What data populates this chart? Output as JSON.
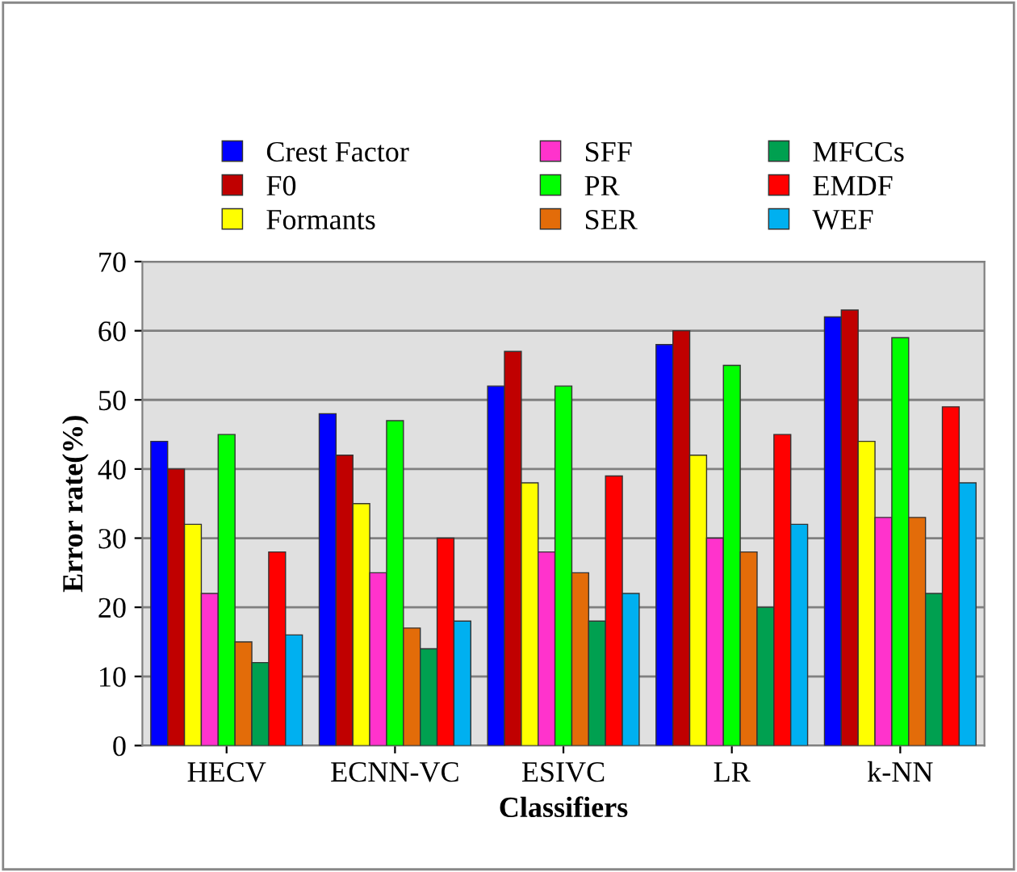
{
  "chart_data": {
    "type": "bar",
    "xlabel": "Classifiers",
    "ylabel": "Error rate(%)",
    "categories": [
      "HECV",
      "ECNN-VC",
      "ESIVC",
      "LR",
      "k-NN"
    ],
    "series": [
      {
        "name": "Crest Factor",
        "color": "#0000ff",
        "values": [
          44,
          48,
          52,
          58,
          62
        ]
      },
      {
        "name": "F0",
        "color": "#c00000",
        "values": [
          40,
          42,
          57,
          60,
          63
        ]
      },
      {
        "name": "Formants",
        "color": "#ffff00",
        "values": [
          32,
          35,
          38,
          42,
          44
        ]
      },
      {
        "name": "SFF",
        "color": "#ff33cc",
        "values": [
          22,
          25,
          28,
          30,
          33
        ]
      },
      {
        "name": "PR",
        "color": "#00ff00",
        "values": [
          45,
          47,
          52,
          55,
          59
        ]
      },
      {
        "name": "SER",
        "color": "#e36c09",
        "values": [
          15,
          17,
          25,
          28,
          33
        ]
      },
      {
        "name": "MFCCs",
        "color": "#00a050",
        "values": [
          12,
          14,
          18,
          20,
          22
        ]
      },
      {
        "name": "EMDF",
        "color": "#ff0000",
        "values": [
          28,
          30,
          39,
          45,
          49
        ]
      },
      {
        "name": "WEF",
        "color": "#00b0f0",
        "values": [
          16,
          18,
          22,
          32,
          38
        ]
      }
    ],
    "ylim": [
      0,
      70
    ],
    "yticks": [
      0,
      10,
      20,
      30,
      40,
      50,
      60,
      70
    ],
    "grid": "y",
    "legend": "top"
  }
}
